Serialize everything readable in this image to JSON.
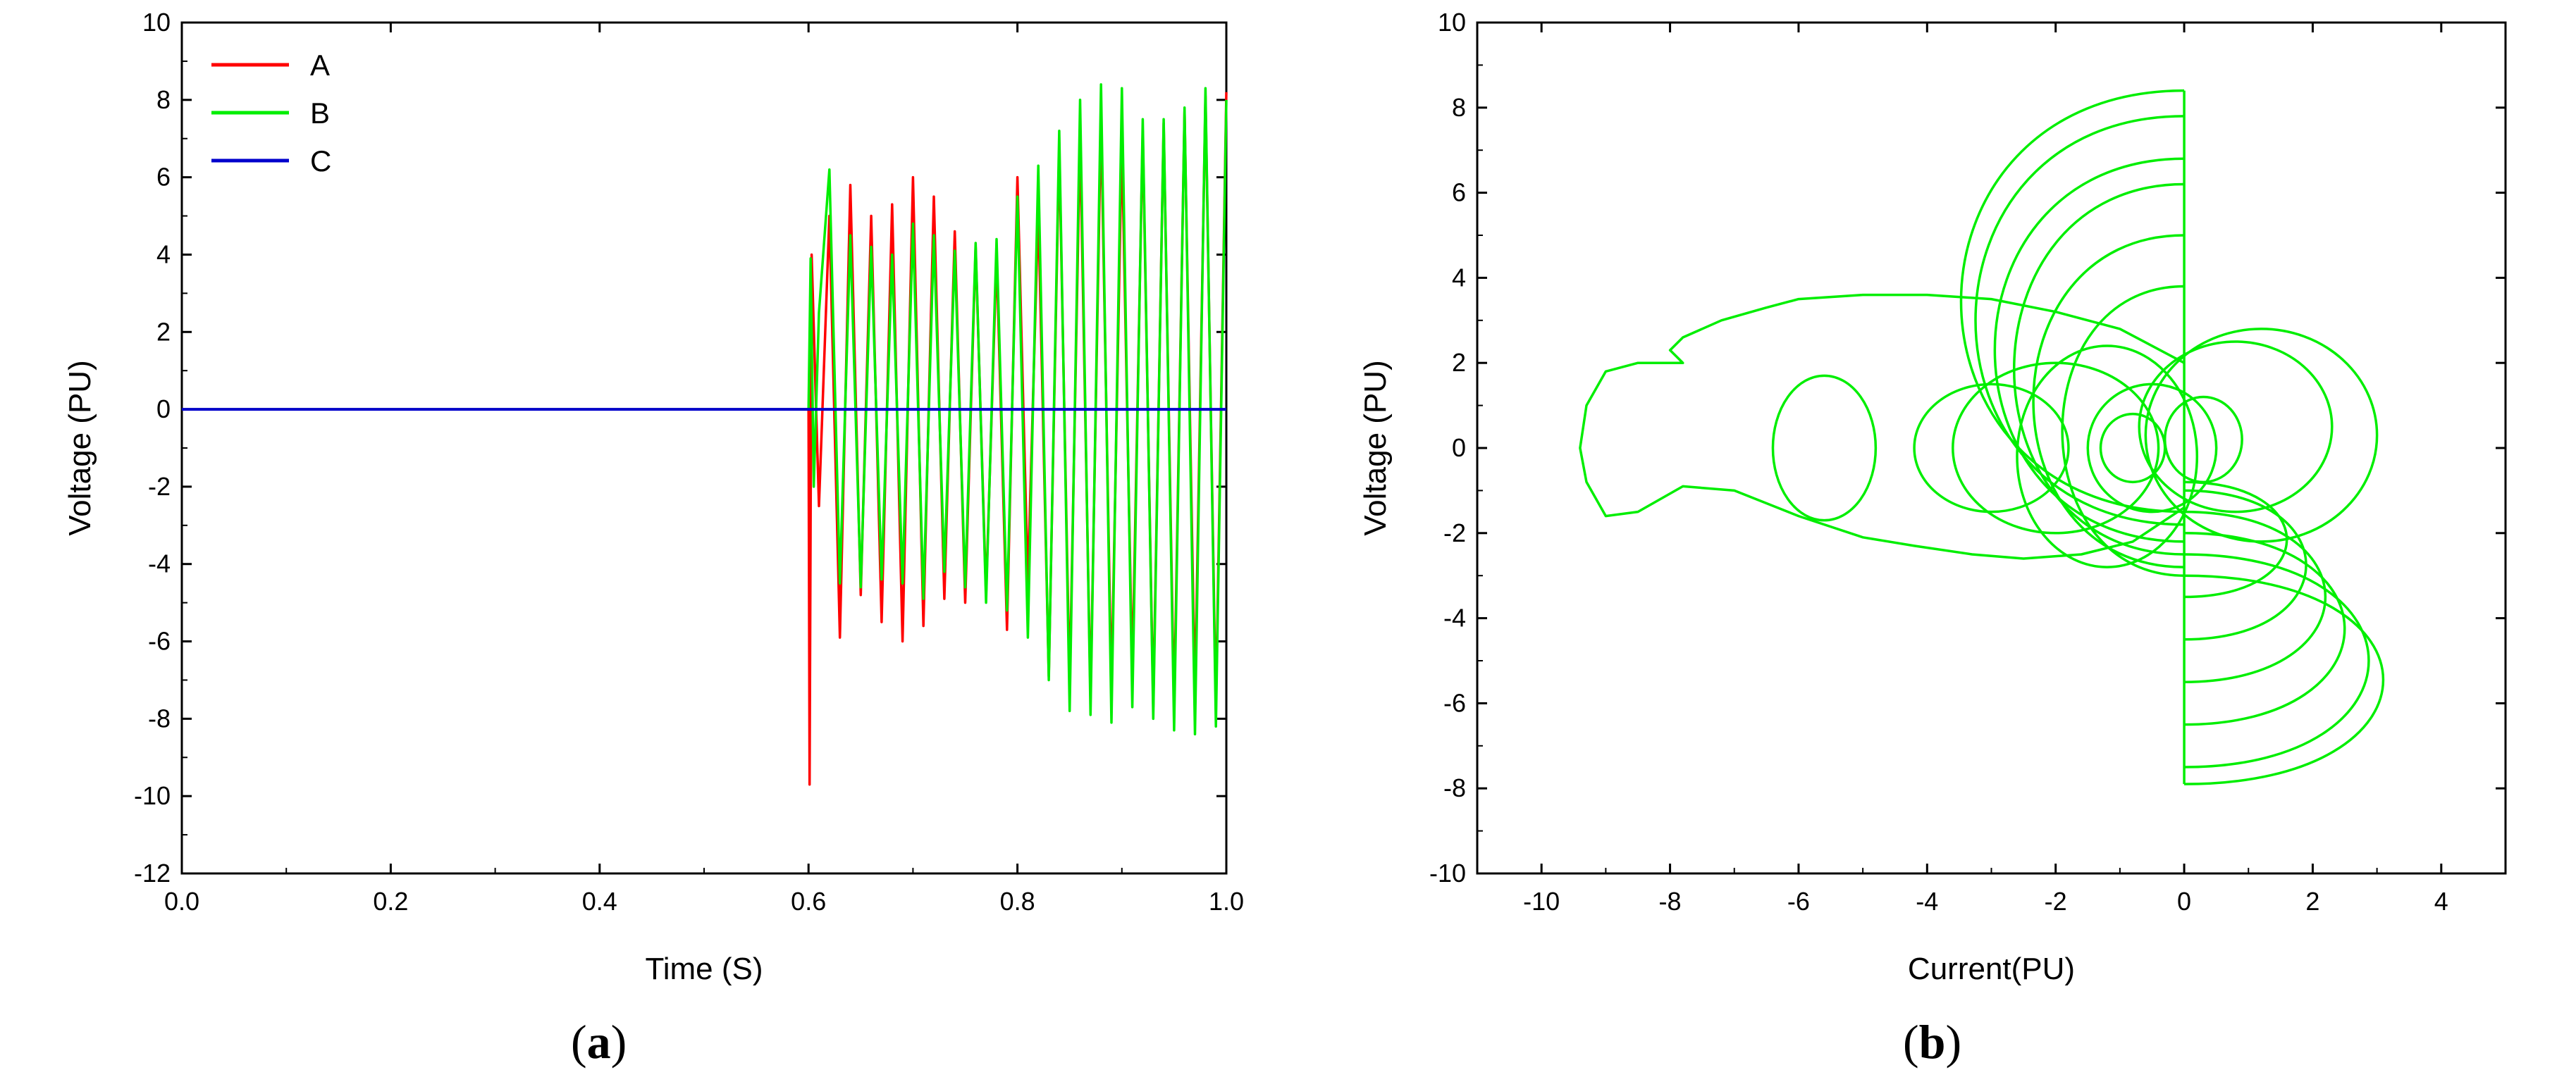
{
  "captions": {
    "a": "a",
    "b": "b"
  },
  "colors": {
    "A": "#ff0000",
    "B": "#00ee00",
    "C": "#0000cc",
    "axis": "#000000"
  },
  "chart_data": [
    {
      "type": "line",
      "xlabel": "Time (S)",
      "ylabel": "Voltage (PU)",
      "xlim": [
        0.0,
        1.0
      ],
      "ylim": [
        -12,
        10
      ],
      "xticks": [
        0.0,
        0.2,
        0.4,
        0.6,
        0.8,
        1.0
      ],
      "xtick_labels": [
        "0.0",
        "0.2",
        "0.4",
        "0.6",
        "0.8",
        "1.0"
      ],
      "yticks": [
        -12,
        -10,
        -8,
        -6,
        -4,
        -2,
        0,
        2,
        4,
        6,
        8,
        10
      ],
      "ytick_labels": [
        "-12",
        "-10",
        "-8",
        "-6",
        "-4",
        "-2",
        "0",
        "2",
        "4",
        "6",
        "8",
        "10"
      ],
      "grid": false,
      "legend": "top-left",
      "series": [
        {
          "name": "A",
          "color": "#ff0000",
          "x": [
            0.0,
            0.6,
            0.601,
            0.603,
            0.61,
            0.62,
            0.63,
            0.64,
            0.65,
            0.66,
            0.67,
            0.68,
            0.69,
            0.7,
            0.71,
            0.72,
            0.73,
            0.74,
            0.75,
            0.76,
            0.77,
            0.78,
            0.79,
            0.8,
            0.81,
            0.82,
            0.83,
            0.84,
            0.85,
            0.86,
            0.87,
            0.88,
            0.89,
            0.9,
            0.91,
            0.92,
            0.93,
            0.94,
            0.95,
            0.96,
            0.97,
            0.98,
            0.99,
            1.0
          ],
          "y": [
            0.0,
            0.0,
            -9.7,
            4.0,
            -2.5,
            5.0,
            -5.9,
            5.8,
            -4.8,
            5.0,
            -5.5,
            5.3,
            -6.0,
            6.0,
            -5.6,
            5.5,
            -4.9,
            4.6,
            -5.0,
            4.2,
            -4.8,
            4.0,
            -5.7,
            6.0,
            -4.5,
            5.2,
            -6.9,
            6.8,
            -7.2,
            7.1,
            -7.5,
            7.6,
            -7.3,
            7.0,
            -6.9,
            7.2,
            -7.7,
            7.4,
            -7.8,
            7.7,
            -7.5,
            8.1,
            -7.8,
            8.2
          ]
        },
        {
          "name": "B",
          "color": "#00ee00",
          "x": [
            0.0,
            0.6,
            0.602,
            0.605,
            0.61,
            0.62,
            0.63,
            0.64,
            0.65,
            0.66,
            0.67,
            0.68,
            0.69,
            0.7,
            0.71,
            0.72,
            0.73,
            0.74,
            0.75,
            0.76,
            0.77,
            0.78,
            0.79,
            0.8,
            0.81,
            0.82,
            0.83,
            0.84,
            0.85,
            0.86,
            0.87,
            0.88,
            0.89,
            0.9,
            0.91,
            0.92,
            0.93,
            0.94,
            0.95,
            0.96,
            0.97,
            0.98,
            0.99,
            1.0
          ],
          "y": [
            0.0,
            0.0,
            3.9,
            -2.0,
            2.5,
            6.2,
            -4.5,
            4.5,
            -4.6,
            4.2,
            -4.4,
            4.0,
            -4.5,
            4.8,
            -4.9,
            4.5,
            -4.2,
            4.1,
            -4.6,
            4.3,
            -5.0,
            4.4,
            -5.2,
            5.5,
            -5.9,
            6.3,
            -7.0,
            7.2,
            -7.8,
            8.0,
            -7.9,
            8.4,
            -8.1,
            8.3,
            -7.7,
            7.5,
            -8.0,
            7.5,
            -8.3,
            7.8,
            -8.4,
            8.3,
            -8.2,
            8.0
          ]
        },
        {
          "name": "C",
          "color": "#0000cc",
          "x": [
            0.0,
            1.0
          ],
          "y": [
            0.0,
            0.0
          ]
        }
      ]
    },
    {
      "type": "line",
      "xlabel": "Current(PU)",
      "ylabel": "Voltage (PU)",
      "xlim": [
        -11,
        5
      ],
      "ylim": [
        -10,
        10
      ],
      "xticks": [
        -10,
        -8,
        -6,
        -4,
        -2,
        0,
        2,
        4
      ],
      "xtick_labels": [
        "-10",
        "-8",
        "-6",
        "-4",
        "-2",
        "0",
        "2",
        "4"
      ],
      "yticks": [
        -10,
        -8,
        -6,
        -4,
        -2,
        0,
        2,
        4,
        6,
        8,
        10
      ],
      "ytick_labels": [
        "-10",
        "-8",
        "-6",
        "-4",
        "-2",
        "0",
        "2",
        "4",
        "6",
        "8",
        "10"
      ],
      "grid": false,
      "series": [
        {
          "color": "#00ee00",
          "arcs_right": [
            {
              "top": -3.0,
              "bottom": -7.9,
              "right": 3.8
            },
            {
              "top": -2.5,
              "bottom": -7.5,
              "right": 3.5
            },
            {
              "top": -2.0,
              "bottom": -6.5,
              "right": 3.0
            },
            {
              "top": -1.5,
              "bottom": -5.5,
              "right": 2.6
            },
            {
              "top": -1.0,
              "bottom": -4.5,
              "right": 2.2
            },
            {
              "top": -0.8,
              "bottom": -3.5,
              "right": 1.8
            }
          ],
          "arcs_left": [
            {
              "top": 8.4,
              "bottom": -1.5,
              "left": -4.3
            },
            {
              "top": 7.8,
              "bottom": -1.8,
              "left": -4.0
            },
            {
              "top": 6.8,
              "bottom": -2.2,
              "left": -3.6
            },
            {
              "top": 6.2,
              "bottom": -2.5,
              "left": -3.2
            },
            {
              "top": 5.0,
              "bottom": -2.8,
              "left": -2.8
            },
            {
              "top": 3.8,
              "bottom": -3.0,
              "left": -2.2
            }
          ],
          "loops": [
            {
              "cx": -5.6,
              "cy": 0.0,
              "rx": 0.8,
              "ry": 1.7
            },
            {
              "cx": -1.2,
              "cy": -0.2,
              "rx": 1.4,
              "ry": 2.6
            },
            {
              "cx": 1.2,
              "cy": 0.3,
              "rx": 1.8,
              "ry": 2.5
            },
            {
              "cx": 0.8,
              "cy": 0.5,
              "rx": 1.5,
              "ry": 2.0
            },
            {
              "cx": -0.5,
              "cy": 0.0,
              "rx": 1.0,
              "ry": 1.5
            },
            {
              "cx": -2.0,
              "cy": 0.0,
              "rx": 1.6,
              "ry": 2.0
            },
            {
              "cx": -3.0,
              "cy": 0.0,
              "rx": 1.2,
              "ry": 1.5
            },
            {
              "cx": 0.3,
              "cy": 0.2,
              "rx": 0.6,
              "ry": 1.0
            },
            {
              "cx": -0.8,
              "cy": 0.0,
              "rx": 0.5,
              "ry": 0.8
            }
          ],
          "outer_path": {
            "x": [
              0,
              -0.8,
              -1.6,
              -2.5,
              -3.3,
              -4.2,
              -5.0,
              -6.0,
              -7.0,
              -7.8,
              -8.5,
              -9.0,
              -9.3,
              -9.4,
              -9.3,
              -9.0,
              -8.5,
              -8.0,
              -7.8,
              -8.0,
              -7.8,
              -7.2,
              -6.5,
              -6.0,
              -5.0,
              -4.0,
              -3.0,
              -2.0,
              -1.0,
              0
            ],
            "y": [
              -1.4,
              -2.2,
              -2.5,
              -2.6,
              -2.5,
              -2.3,
              -2.1,
              -1.6,
              -1.0,
              -0.9,
              -1.5,
              -1.6,
              -0.8,
              0.0,
              1.0,
              1.8,
              2.0,
              2.0,
              2.0,
              2.3,
              2.6,
              3.0,
              3.3,
              3.5,
              3.6,
              3.6,
              3.5,
              3.2,
              2.8,
              2.0
            ]
          }
        }
      ]
    }
  ]
}
